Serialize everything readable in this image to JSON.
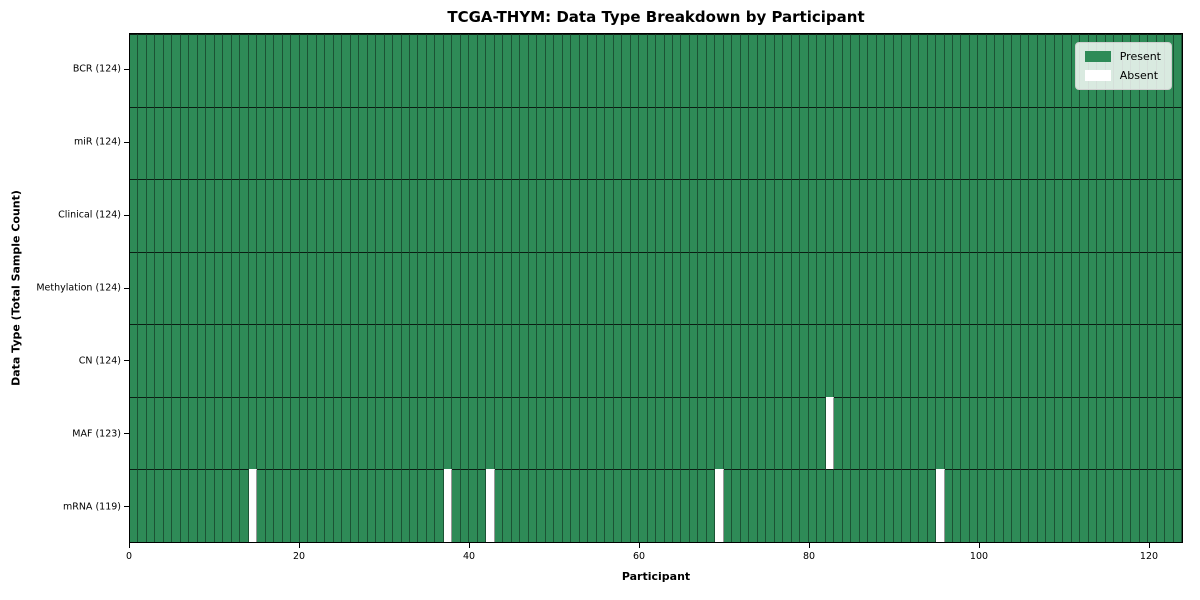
{
  "chart_data": {
    "type": "heatmap",
    "title": "TCGA-THYM: Data Type Breakdown by Participant",
    "xlabel": "Participant",
    "ylabel": "Data Type (Total Sample Count)",
    "xlim": [
      0,
      124
    ],
    "n_participants": 124,
    "x_ticks": [
      0,
      20,
      40,
      60,
      80,
      100,
      120
    ],
    "grid": true,
    "legend": {
      "position": "upper right",
      "entries": [
        {
          "label": "Present",
          "color": "#2e8b57"
        },
        {
          "label": "Absent",
          "color": "#ffffff"
        }
      ]
    },
    "rows": [
      {
        "label": "BCR (124)",
        "data_type": "BCR",
        "present_count": 124,
        "absent_participants": []
      },
      {
        "label": "miR (124)",
        "data_type": "miR",
        "present_count": 124,
        "absent_participants": []
      },
      {
        "label": "Clinical (124)",
        "data_type": "Clinical",
        "present_count": 124,
        "absent_participants": []
      },
      {
        "label": "Methylation (124)",
        "data_type": "Methylation",
        "present_count": 124,
        "absent_participants": []
      },
      {
        "label": "CN (124)",
        "data_type": "CN",
        "present_count": 124,
        "absent_participants": []
      },
      {
        "label": "MAF (123)",
        "data_type": "MAF",
        "present_count": 123,
        "absent_participants": [
          82
        ]
      },
      {
        "label": "mRNA (119)",
        "data_type": "mRNA",
        "present_count": 119,
        "absent_participants": [
          14,
          37,
          42,
          69,
          95
        ]
      }
    ],
    "colors": {
      "present": "#2e8b57",
      "absent": "#ffffff",
      "cell_edge": "rgba(0,0,0,0.40)",
      "row_divider": "rgba(0,0,0,0.78)",
      "plot_border": "#000000"
    }
  }
}
